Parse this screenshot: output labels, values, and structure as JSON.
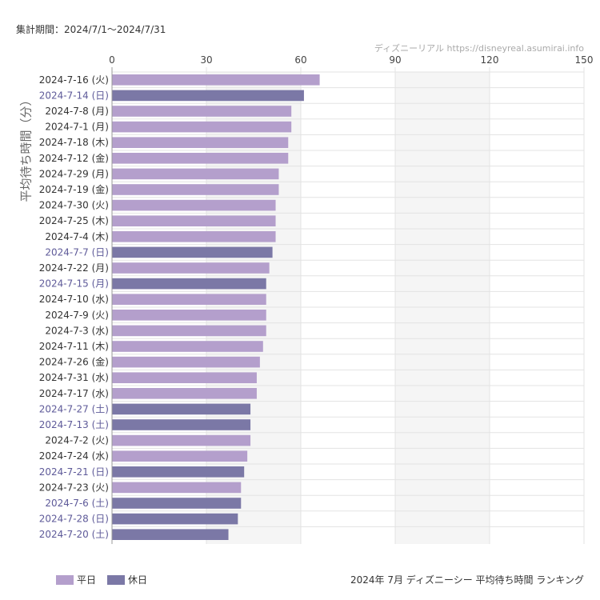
{
  "header": {
    "period_label": "集計期間：2024/7/1〜2024/7/31",
    "credit": "ディズニーリアル  https://disneyreal.asumirai.info"
  },
  "footer": {
    "caption": "2024年 7月 ディズニーシー 平均待ち時間 ランキング"
  },
  "colors": {
    "weekday": "#b49fcc",
    "holiday": "#7b78a6",
    "holiday_label": "#5e5a99",
    "weekday_label": "#333333",
    "band": "#f5f5f5",
    "grid": "#e3e3e3"
  },
  "chart_data": {
    "type": "bar",
    "orientation": "horizontal",
    "ylabel": "平均待ち時間（分）",
    "xlim": [
      0,
      150
    ],
    "xticks": [
      0,
      30,
      60,
      90,
      120,
      150
    ],
    "xaxis_position": "top",
    "legend_position": "bottom-left",
    "grid": true,
    "categories": [
      "2024-7-16 (火)",
      "2024-7-14 (日)",
      "2024-7-8 (月)",
      "2024-7-1 (月)",
      "2024-7-18 (木)",
      "2024-7-12 (金)",
      "2024-7-29 (月)",
      "2024-7-19 (金)",
      "2024-7-30 (火)",
      "2024-7-25 (木)",
      "2024-7-4 (木)",
      "2024-7-7 (日)",
      "2024-7-22 (月)",
      "2024-7-15 (月)",
      "2024-7-10 (水)",
      "2024-7-9 (火)",
      "2024-7-3 (水)",
      "2024-7-11 (木)",
      "2024-7-26 (金)",
      "2024-7-31 (水)",
      "2024-7-17 (水)",
      "2024-7-27 (土)",
      "2024-7-13 (土)",
      "2024-7-2 (火)",
      "2024-7-24 (水)",
      "2024-7-21 (日)",
      "2024-7-23 (火)",
      "2024-7-6 (土)",
      "2024-7-28 (日)",
      "2024-7-20 (土)"
    ],
    "values": [
      66,
      61,
      57,
      57,
      56,
      56,
      53,
      53,
      52,
      52,
      52,
      51,
      50,
      49,
      49,
      49,
      49,
      48,
      47,
      46,
      46,
      44,
      44,
      44,
      43,
      42,
      41,
      41,
      40,
      37
    ],
    "holiday": [
      false,
      true,
      false,
      false,
      false,
      false,
      false,
      false,
      false,
      false,
      false,
      true,
      false,
      true,
      false,
      false,
      false,
      false,
      false,
      false,
      false,
      true,
      true,
      false,
      false,
      true,
      false,
      true,
      true,
      true
    ],
    "series": [
      {
        "name": "平日",
        "color": "#b49fcc"
      },
      {
        "name": "休日",
        "color": "#7b78a6"
      }
    ]
  }
}
